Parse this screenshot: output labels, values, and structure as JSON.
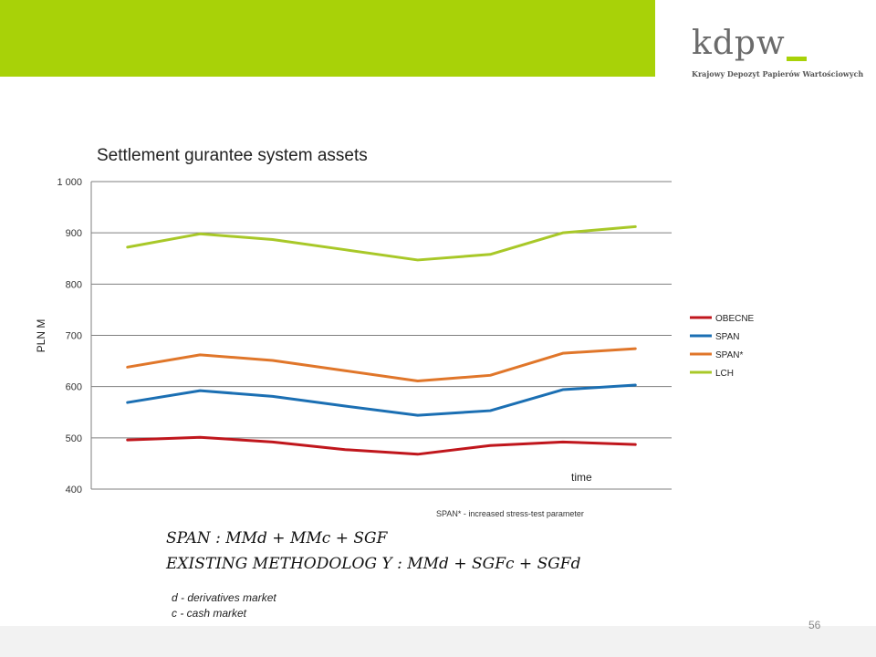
{
  "logo": {
    "word": "kdpw",
    "subtitle": "Krajowy Depozyt Papierów Wartościowych"
  },
  "chart_data": {
    "type": "line",
    "title": "Settlement gurantee system assets",
    "ylabel": "PLN M",
    "xlabel": "time",
    "ylim": [
      400,
      1000
    ],
    "yticks": [
      400,
      500,
      600,
      700,
      800,
      900,
      1000
    ],
    "ytick_labels": [
      "400",
      "500",
      "600",
      "700",
      "800",
      "900",
      "1 000"
    ],
    "x": [
      1,
      2,
      3,
      4,
      5,
      6,
      7,
      8
    ],
    "grid": "horizontal",
    "legend_position": "right",
    "series": [
      {
        "name": "OBECNE",
        "color": "#c0161c",
        "values": [
          496,
          501,
          492,
          477,
          468,
          485,
          492,
          487
        ]
      },
      {
        "name": "SPAN",
        "color": "#1b6fb3",
        "values": [
          569,
          592,
          581,
          562,
          544,
          553,
          594,
          603
        ]
      },
      {
        "name": "SPAN*",
        "color": "#e0762a",
        "values": [
          638,
          662,
          651,
          631,
          611,
          622,
          665,
          674
        ]
      },
      {
        "name": "LCH",
        "color": "#a8c828",
        "values": [
          872,
          898,
          887,
          867,
          847,
          858,
          900,
          912
        ]
      }
    ]
  },
  "footnote": "SPAN* - increased stress-test parameter",
  "formulas": {
    "span": "SPAN : MMd + MMc + SGF",
    "existing": "EXISTING METHODOLOG Y : MMd + SGFc + SGFd"
  },
  "definitions": {
    "d": "d - derivatives market",
    "c": "c - cash market"
  },
  "page_number": "56",
  "colors": {
    "accent_green": "#a8d208"
  }
}
